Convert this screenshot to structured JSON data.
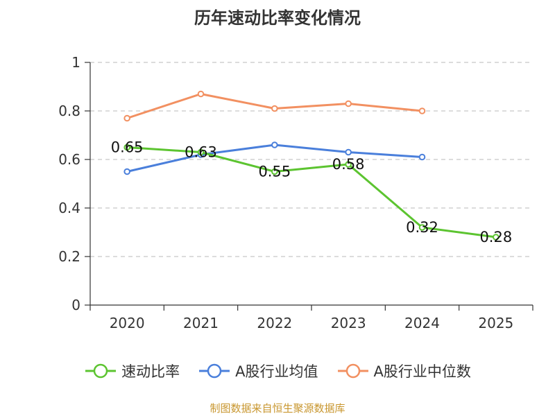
{
  "chart_data": {
    "type": "line",
    "title": "历年速动比率变化情况",
    "categories": [
      "2020",
      "2021",
      "2022",
      "2023",
      "2024",
      "2025"
    ],
    "ylim": [
      0,
      1
    ],
    "yticks": [
      "0",
      "0.2",
      "0.4",
      "0.6",
      "0.8",
      "1"
    ],
    "grid": true,
    "series": [
      {
        "name": "速动比率",
        "color": "#5cc430",
        "values": [
          0.65,
          0.63,
          0.55,
          0.58,
          0.32,
          0.28
        ],
        "labels": [
          "0.65",
          "0.63",
          "0.55",
          "0.58",
          "0.32",
          "0.28"
        ]
      },
      {
        "name": "A股行业均值",
        "color": "#4a7fdb",
        "values": [
          0.55,
          0.62,
          0.66,
          0.63,
          0.61,
          null
        ]
      },
      {
        "name": "A股行业中位数",
        "color": "#f29061",
        "values": [
          0.77,
          0.87,
          0.81,
          0.83,
          0.8,
          null
        ]
      }
    ],
    "legend_position": "bottom"
  },
  "source": "制图数据来自恒生聚源数据库"
}
